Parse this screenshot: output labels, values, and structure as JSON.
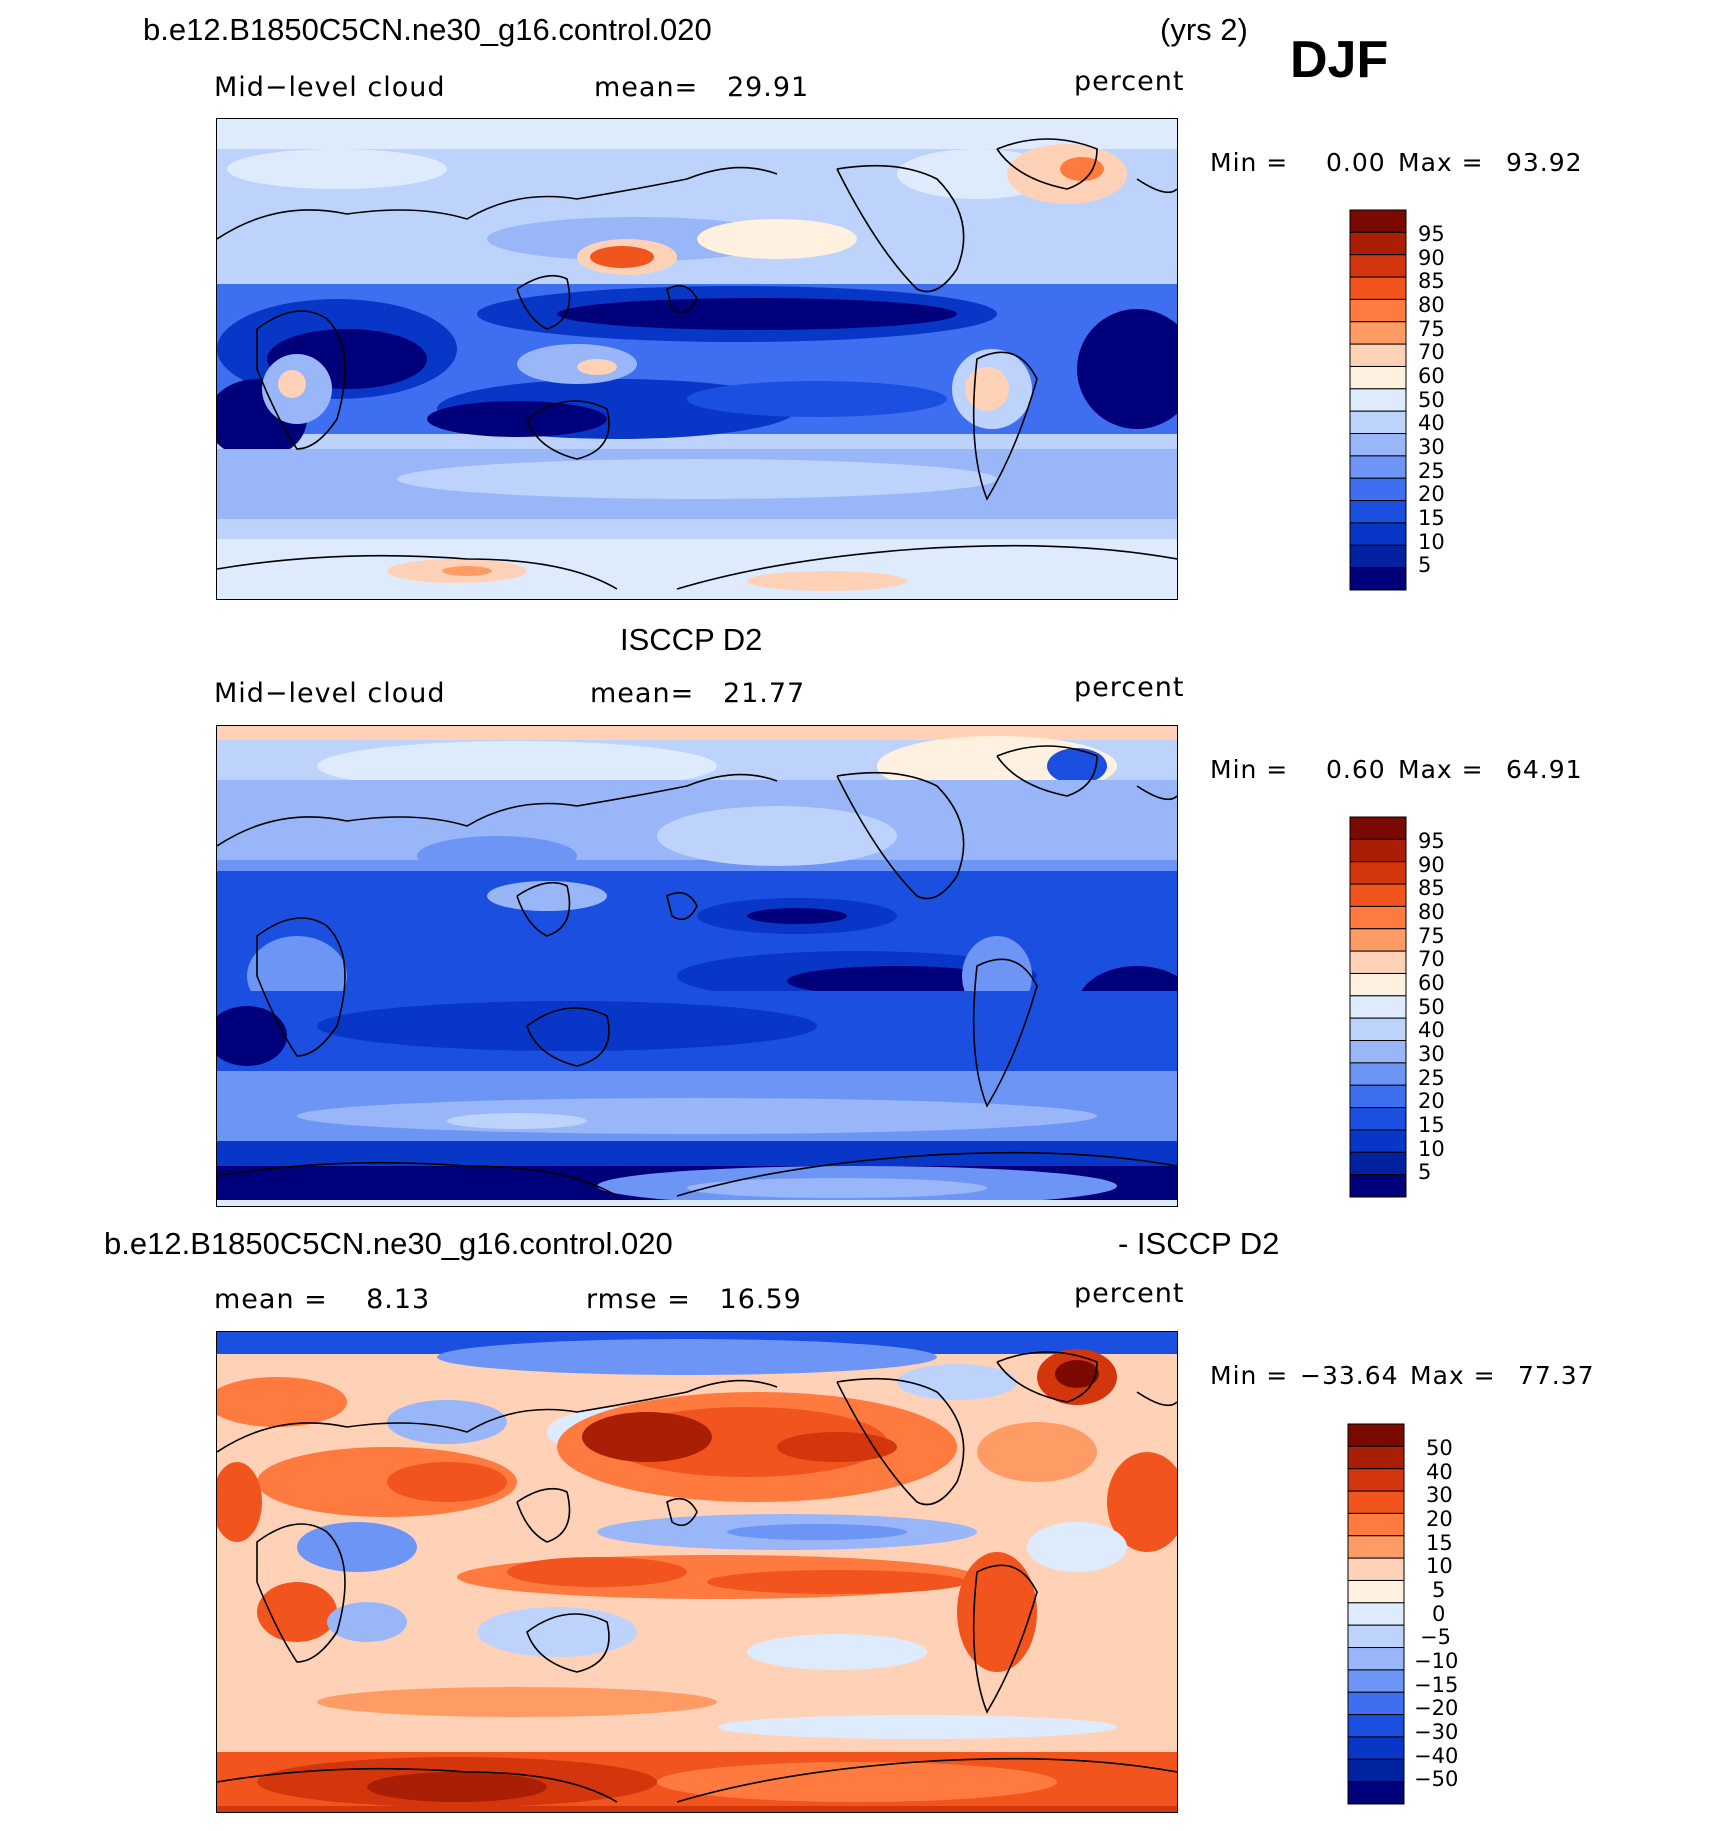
{
  "header": {
    "case_name": "b.e12.B1850C5CN.ne30_g16.control.020",
    "years": "(yrs 2)",
    "season": "DJF"
  },
  "palettes": {
    "field": [
      "#00007a",
      "#0022a0",
      "#0836c6",
      "#1a4fe0",
      "#3d6ff0",
      "#6d95f5",
      "#98b6f8",
      "#bdd3fb",
      "#ddebfd",
      "#fff1df",
      "#ffd2b8",
      "#ff9c66",
      "#fe7a3e",
      "#f2541e",
      "#d3350c",
      "#a91e04",
      "#7a0a00"
    ],
    "diff": [
      "#00007a",
      "#0022a0",
      "#0836c6",
      "#1a4fe0",
      "#3d6ff0",
      "#6d95f5",
      "#98b6f8",
      "#bdd3fb",
      "#ddebfd",
      "#fff1df",
      "#ffd2b8",
      "#ff9c66",
      "#fe7a3e",
      "#f2541e",
      "#d3350c",
      "#a91e04",
      "#7a0a00"
    ]
  },
  "panels": [
    {
      "title": "",
      "left_label": "Mid−level cloud",
      "center_label": "mean=   29.91",
      "units": "percent",
      "min_label": "Min =",
      "min_value": "0.00",
      "max_label": "Max =",
      "max_value": "93.92"
    },
    {
      "title": "ISCCP D2",
      "left_label": "Mid−level cloud",
      "center_label": "mean=   21.77",
      "units": "percent",
      "min_label": "Min =",
      "min_value": "0.60",
      "max_label": "Max =",
      "max_value": "64.91"
    },
    {
      "title_left": "b.e12.B1850C5CN.ne30_g16.control.020",
      "title_right": "- ISCCP D2",
      "left_label": "mean =    8.13",
      "center_label": "rmse =   16.59",
      "units": "percent",
      "min_label": "Min =",
      "min_value": "−33.64",
      "max_label": "Max =",
      "max_value": "77.37"
    }
  ],
  "chart_data": [
    {
      "type": "heatmap",
      "title": "b.e12.B1850C5CN.ne30_g16.control.020 (yrs 2) DJF",
      "variable": "Mid-level cloud",
      "units": "percent",
      "mean": 29.91,
      "min": 0.0,
      "max": 93.92,
      "contour_levels": [
        5,
        10,
        15,
        20,
        25,
        30,
        40,
        50,
        60,
        70,
        75,
        80,
        85,
        90,
        95
      ],
      "colorbar_labels": [
        "95",
        "90",
        "85",
        "80",
        "75",
        "70",
        "60",
        "50",
        "40",
        "30",
        "25",
        "20",
        "15",
        "10",
        "5"
      ]
    },
    {
      "type": "heatmap",
      "title": "ISCCP D2",
      "variable": "Mid-level cloud",
      "units": "percent",
      "mean": 21.77,
      "min": 0.6,
      "max": 64.91,
      "contour_levels": [
        5,
        10,
        15,
        20,
        25,
        30,
        40,
        50,
        60,
        70,
        75,
        80,
        85,
        90,
        95
      ],
      "colorbar_labels": [
        "95",
        "90",
        "85",
        "80",
        "75",
        "70",
        "60",
        "50",
        "40",
        "30",
        "25",
        "20",
        "15",
        "10",
        "5"
      ]
    },
    {
      "type": "heatmap",
      "title": "b.e12.B1850C5CN.ne30_g16.control.020 - ISCCP D2",
      "units": "percent",
      "mean": 8.13,
      "rmse": 16.59,
      "min": -33.64,
      "max": 77.37,
      "contour_levels": [
        -50,
        -40,
        -30,
        -20,
        -15,
        -10,
        -5,
        0,
        5,
        10,
        15,
        20,
        30,
        40,
        50
      ],
      "colorbar_labels": [
        "50",
        "40",
        "30",
        "20",
        "15",
        "10",
        "5",
        "0",
        "−5",
        "−10",
        "−15",
        "−20",
        "−30",
        "−40",
        "−50"
      ]
    }
  ]
}
